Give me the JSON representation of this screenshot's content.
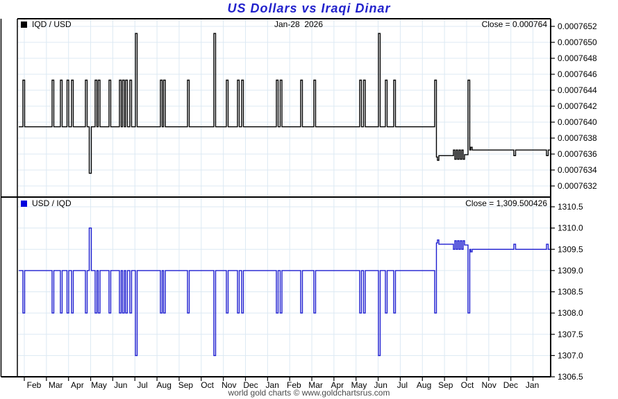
{
  "title": "US Dollars vs Iraqi Dinar",
  "header": {
    "date_label": "Jan-28  2026"
  },
  "panels": {
    "top": {
      "legend": "IQD / USD",
      "close_label": "Close = 0.000764",
      "swatch_color": "#000000"
    },
    "bottom": {
      "legend": "USD / IQD",
      "close_label": "Close = 1,309.500426",
      "swatch_color": "#0000dd"
    }
  },
  "footer": "world gold charts © www.goldchartsrus.com",
  "colors": {
    "grid": "#dce9f3",
    "border": "#000000",
    "top_line": "#000000",
    "bottom_line": "#1c1cd0",
    "title_blue": "#2222cc"
  },
  "x_axis": {
    "months": [
      "Feb",
      "Mar",
      "Apr",
      "May",
      "Jun",
      "Jul",
      "Aug",
      "Sep",
      "Oct",
      "Nov",
      "Dec",
      "Jan",
      "Feb",
      "Mar",
      "Apr",
      "May",
      "Jun",
      "Jul",
      "Aug",
      "Sep",
      "Oct",
      "Nov",
      "Dec",
      "Jan"
    ]
  },
  "chart_data": [
    {
      "type": "line",
      "panel": "top",
      "series_name": "IQD / USD",
      "close": 0.000764,
      "color": "#000000",
      "ylim": [
        0.0007632,
        0.0007652
      ],
      "yticks": [
        "0.0007652",
        "0.0007650",
        "0.0007648",
        "0.0007646",
        "0.0007644",
        "0.0007642",
        "0.0007640",
        "0.0007638",
        "0.0007636",
        "0.0007634",
        "0.0007632"
      ],
      "derivation": "reciprocal of USD / IQD series (1/x)"
    },
    {
      "type": "line",
      "panel": "bottom",
      "series_name": "USD / IQD",
      "close": 1309.500426,
      "color": "#1c1cd0",
      "ylim": [
        1306.5,
        1310.5
      ],
      "yticks": [
        "1310.5",
        "1310.0",
        "1309.5",
        "1309.0",
        "1308.5",
        "1308.0",
        "1307.5",
        "1307.0",
        "1306.5"
      ],
      "baseline_value": 1309,
      "final_value": 1309.5,
      "step_points": [
        [
          27,
          1309
        ],
        [
          33,
          1308
        ],
        [
          35.5,
          1309
        ],
        [
          75,
          1308
        ],
        [
          77.5,
          1309
        ],
        [
          87,
          1308
        ],
        [
          89.5,
          1309
        ],
        [
          96.5,
          1308
        ],
        [
          99,
          1309
        ],
        [
          103,
          1308
        ],
        [
          105.5,
          1309
        ],
        [
          123,
          1308
        ],
        [
          125.5,
          1309
        ],
        [
          128.5,
          1310
        ],
        [
          131.5,
          1309
        ],
        [
          137,
          1308
        ],
        [
          139.5,
          1309
        ],
        [
          141.5,
          1308
        ],
        [
          144,
          1309
        ],
        [
          157,
          1308
        ],
        [
          159.5,
          1309
        ],
        [
          172,
          1308
        ],
        [
          174.5,
          1309
        ],
        [
          176.5,
          1308
        ],
        [
          179,
          1309
        ],
        [
          181,
          1308
        ],
        [
          183.5,
          1309
        ],
        [
          187,
          1308
        ],
        [
          189.5,
          1309
        ],
        [
          195,
          1307
        ],
        [
          197.5,
          1309
        ],
        [
          231,
          1308
        ],
        [
          233.5,
          1309
        ],
        [
          235.5,
          1308
        ],
        [
          238,
          1309
        ],
        [
          270,
          1308
        ],
        [
          272.5,
          1309
        ],
        [
          308,
          1307
        ],
        [
          310.5,
          1309
        ],
        [
          326,
          1308
        ],
        [
          328.5,
          1309
        ],
        [
          342,
          1308
        ],
        [
          344.5,
          1309
        ],
        [
          348,
          1308
        ],
        [
          350.5,
          1309
        ],
        [
          398,
          1308
        ],
        [
          400.5,
          1309
        ],
        [
          403.5,
          1308
        ],
        [
          406,
          1309
        ],
        [
          433,
          1308
        ],
        [
          435.5,
          1309
        ],
        [
          452,
          1308
        ],
        [
          454.5,
          1309
        ],
        [
          518,
          1308
        ],
        [
          520.5,
          1309
        ],
        [
          523.5,
          1308
        ],
        [
          526,
          1309
        ],
        [
          545,
          1307
        ],
        [
          547.5,
          1309
        ],
        [
          555,
          1308
        ],
        [
          557.5,
          1309
        ],
        [
          567,
          1308
        ],
        [
          569.5,
          1309
        ],
        [
          626,
          1308
        ],
        [
          628.5,
          1309.65
        ],
        [
          630,
          1309.72
        ],
        [
          632,
          1309.62
        ],
        [
          653,
          1309.5
        ],
        [
          655,
          1309.7
        ],
        [
          657,
          1309.5
        ],
        [
          659,
          1309.7
        ],
        [
          661,
          1309.5
        ],
        [
          663,
          1309.7
        ],
        [
          665,
          1309.5
        ],
        [
          667,
          1309.7
        ],
        [
          669,
          1309.6
        ],
        [
          674,
          1308
        ],
        [
          676.5,
          1309.5
        ],
        [
          678,
          1309.44
        ],
        [
          680,
          1309.5
        ],
        [
          740,
          1309.62
        ],
        [
          742.5,
          1309.5
        ],
        [
          787,
          1309.62
        ],
        [
          789.5,
          1309.5
        ]
      ],
      "x_end": 792
    }
  ]
}
